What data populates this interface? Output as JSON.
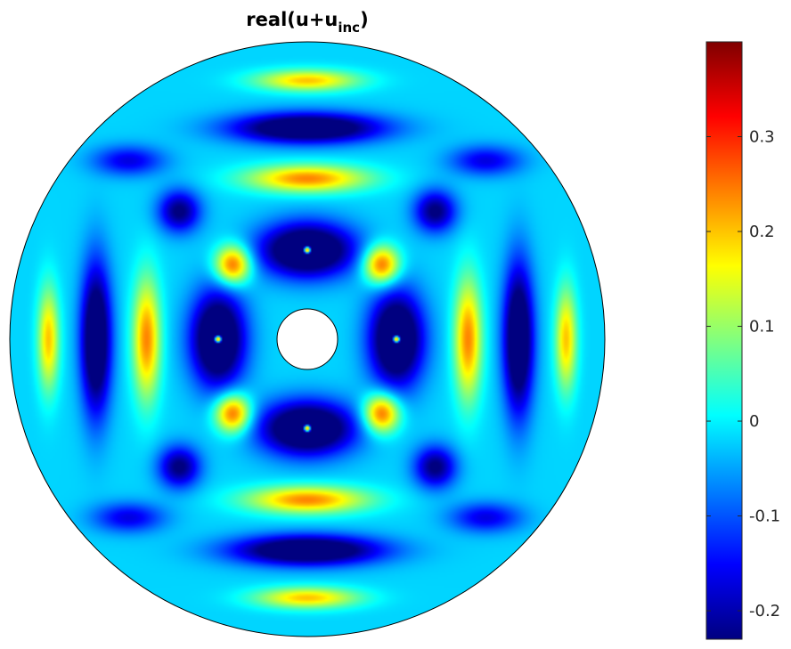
{
  "chart_data": {
    "type": "heatmap",
    "title": {
      "main": "real(u+u",
      "subscript": "inc",
      "close": ")"
    },
    "colormap": "jet",
    "colors": [
      "#00008f",
      "#0000ff",
      "#00ffff",
      "#ffff00",
      "#ff0000",
      "#800000"
    ],
    "clim": [
      -0.23,
      0.4
    ],
    "colorbar": {
      "ticks": [
        {
          "value": 0.3,
          "label": "0.3"
        },
        {
          "value": 0.2,
          "label": "0.2"
        },
        {
          "value": 0.1,
          "label": "0.1"
        },
        {
          "value": 0,
          "label": "0"
        },
        {
          "value": -0.1,
          "label": "-0.1"
        },
        {
          "value": -0.2,
          "label": "-0.2"
        }
      ]
    },
    "domain": {
      "shape": "annulus",
      "inner_radius": 0.1,
      "outer_radius": 1.0
    },
    "grid": false,
    "legend": "colorbar-right"
  }
}
